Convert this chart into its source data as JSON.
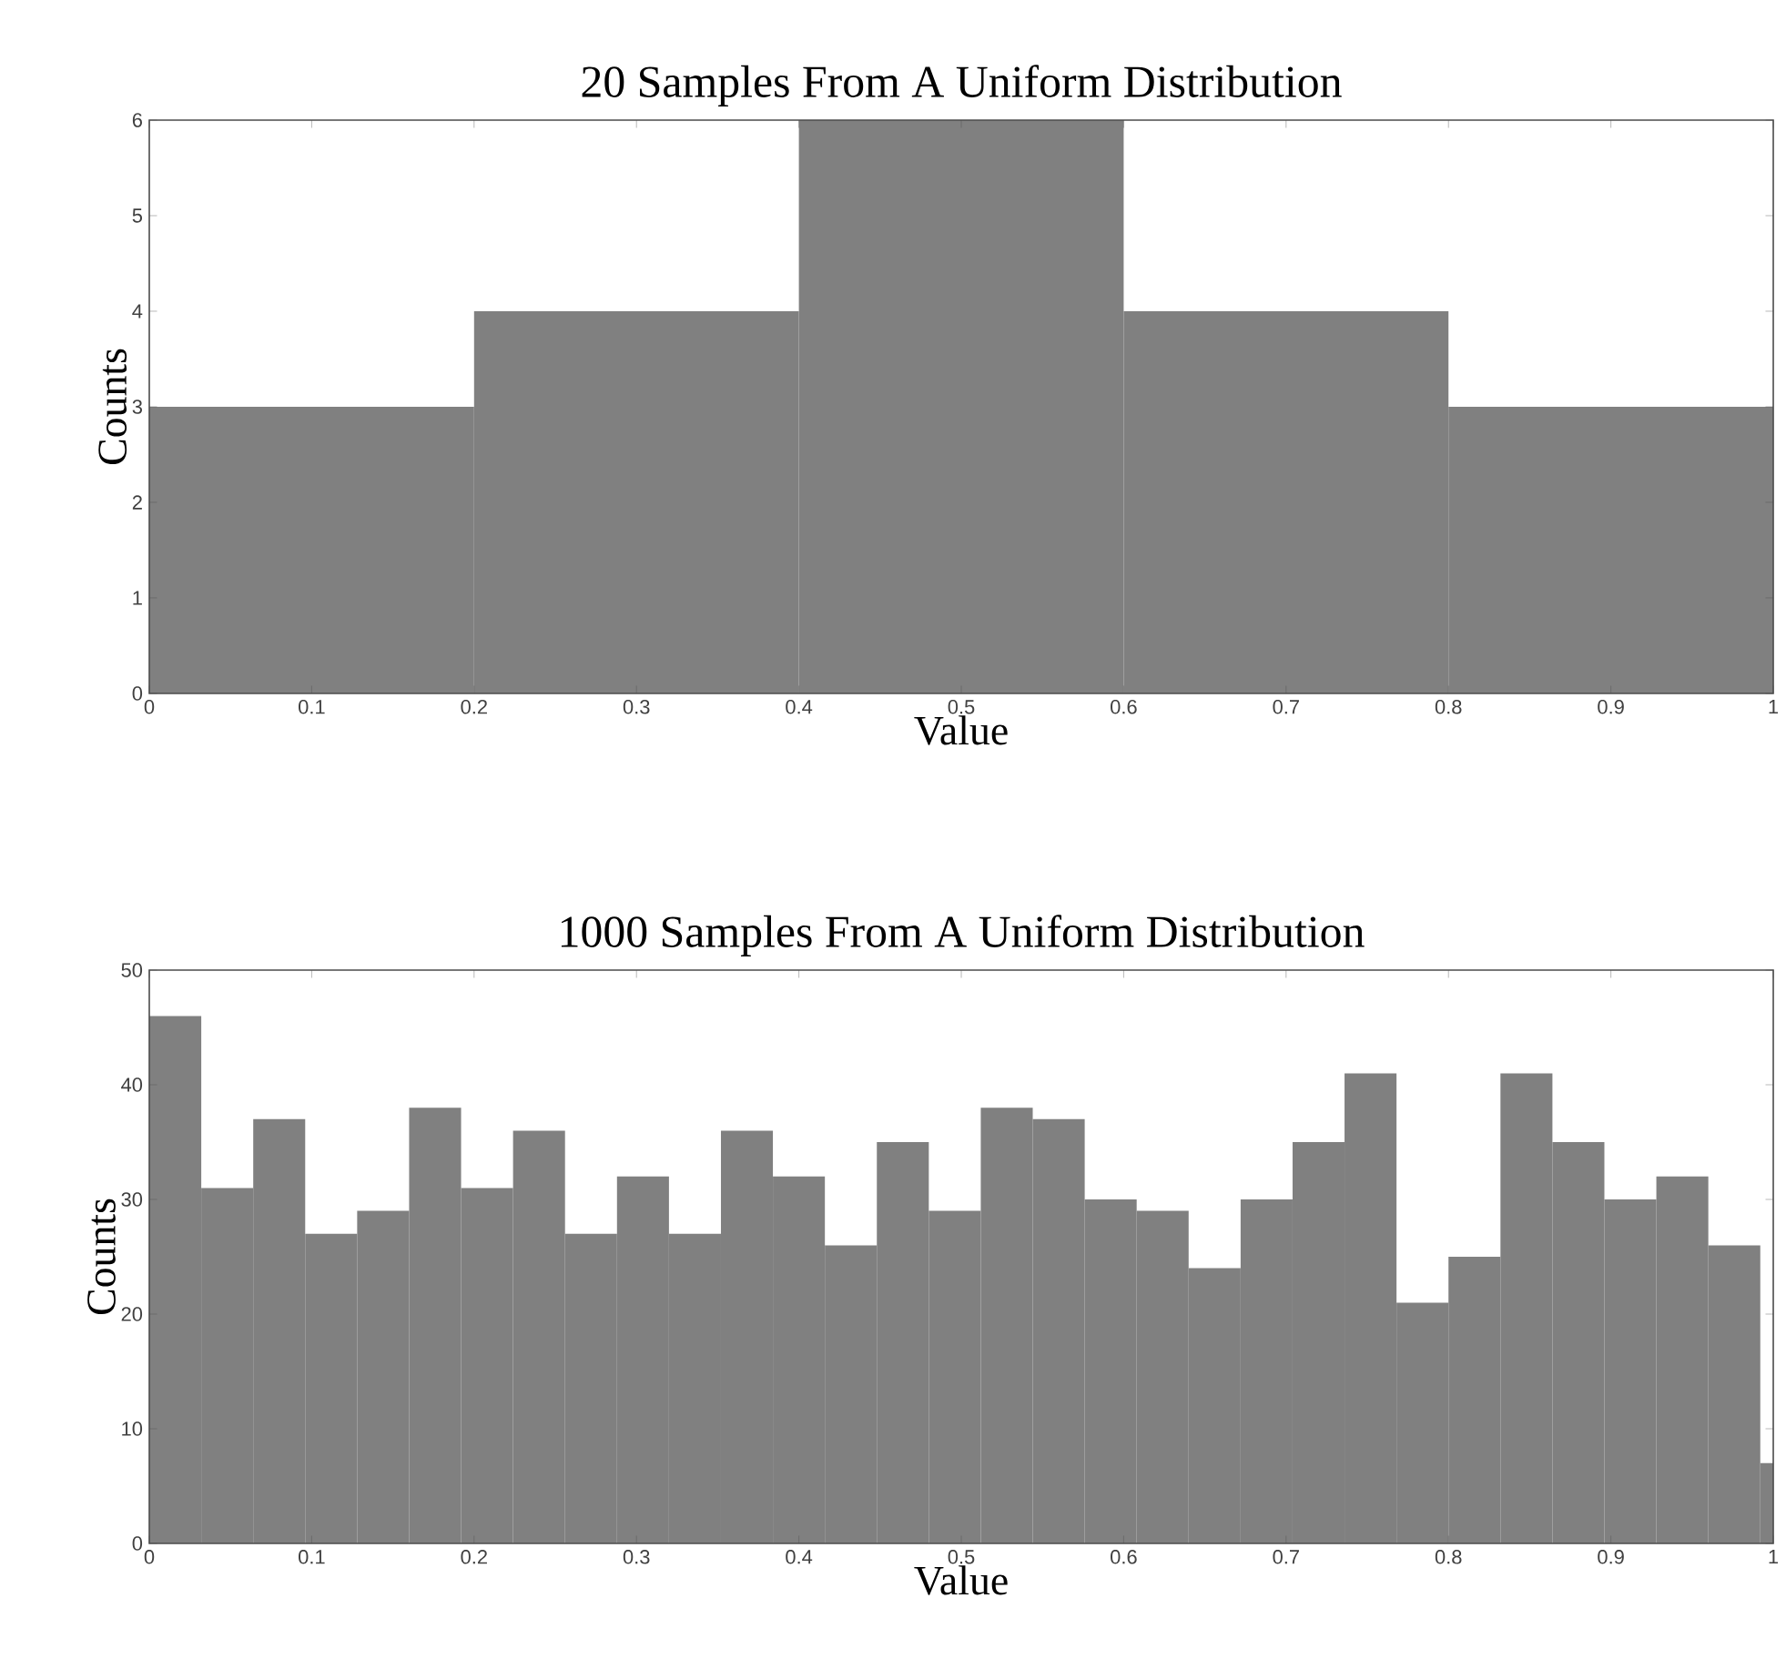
{
  "chart_data": [
    {
      "type": "histogram",
      "title": "20 Samples From A Uniform Distribution",
      "xlabel": "Value",
      "ylabel": "Counts",
      "color": "#808080",
      "bins": [
        0,
        0.2,
        0.4,
        0.6,
        0.8,
        1
      ],
      "values": [
        3,
        4,
        6,
        4,
        3
      ],
      "xlim": [
        0,
        1
      ],
      "ylim": [
        0,
        6
      ],
      "xticks": [
        0,
        0.1,
        0.2,
        0.3,
        0.4,
        0.5,
        0.6,
        0.7,
        0.8,
        0.9,
        1
      ],
      "yticks": [
        0,
        1,
        2,
        3,
        4,
        5,
        6
      ],
      "grid": false
    },
    {
      "type": "histogram",
      "title": "1000 Samples From A Uniform Distribution",
      "xlabel": "Value",
      "ylabel": "Counts",
      "color": "#808080",
      "bins": [
        0,
        0.032,
        0.064,
        0.096,
        0.128,
        0.16,
        0.192,
        0.224,
        0.256,
        0.288,
        0.32,
        0.352,
        0.384,
        0.416,
        0.448,
        0.48,
        0.512,
        0.544,
        0.576,
        0.608,
        0.64,
        0.672,
        0.704,
        0.736,
        0.768,
        0.8,
        0.832,
        0.864,
        0.896,
        0.928,
        0.96,
        0.992,
        1
      ],
      "values": [
        46,
        31,
        37,
        27,
        29,
        38,
        31,
        36,
        27,
        32,
        27,
        36,
        32,
        26,
        35,
        29,
        38,
        37,
        30,
        29,
        24,
        30,
        35,
        41,
        21,
        25,
        41,
        35,
        30,
        32,
        26,
        7
      ],
      "xlim": [
        0,
        1
      ],
      "ylim": [
        0,
        50
      ],
      "xticks": [
        0,
        0.1,
        0.2,
        0.3,
        0.4,
        0.5,
        0.6,
        0.7,
        0.8,
        0.9,
        1
      ],
      "yticks": [
        0,
        10,
        20,
        30,
        40,
        50
      ],
      "grid": false
    }
  ]
}
